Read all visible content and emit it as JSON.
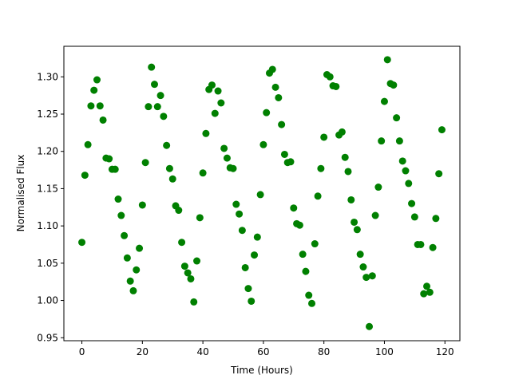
{
  "chart_data": {
    "type": "scatter",
    "xlabel": "Time (Hours)",
    "ylabel": "Normalised Flux",
    "color": "#008000",
    "x": [
      0,
      1,
      2,
      3,
      4,
      5,
      6,
      7,
      8,
      9,
      10,
      11,
      12,
      13,
      14,
      15,
      16,
      17,
      18,
      19,
      20,
      21,
      22,
      23,
      24,
      25,
      26,
      27,
      28,
      29,
      30,
      31,
      32,
      33,
      34,
      35,
      36,
      37,
      38,
      39,
      40,
      41,
      42,
      43,
      44,
      45,
      46,
      47,
      48,
      49,
      50,
      51,
      52,
      53,
      54,
      55,
      56,
      57,
      58,
      59,
      60,
      61,
      62,
      63,
      64,
      65,
      66,
      67,
      68,
      69,
      70,
      71,
      72,
      73,
      74,
      75,
      76,
      77,
      78,
      79,
      80,
      81,
      82,
      83,
      84,
      85,
      86,
      87,
      88,
      89,
      90,
      91,
      92,
      93,
      94,
      95,
      96,
      97,
      98,
      99,
      100,
      101,
      102,
      103,
      104,
      105,
      106,
      107,
      108,
      109,
      110,
      111,
      112,
      113,
      114,
      115,
      116,
      117,
      118,
      119
    ],
    "values": [
      1.078,
      1.168,
      1.209,
      1.261,
      1.282,
      1.296,
      1.261,
      1.242,
      1.191,
      1.19,
      1.176,
      1.176,
      1.136,
      1.114,
      1.087,
      1.057,
      1.026,
      1.013,
      1.041,
      1.07,
      1.128,
      1.185,
      1.26,
      1.313,
      1.29,
      1.26,
      1.275,
      1.247,
      1.208,
      1.177,
      1.163,
      1.127,
      1.121,
      1.078,
      1.046,
      1.037,
      1.029,
      0.998,
      1.053,
      1.111,
      1.171,
      1.224,
      1.283,
      1.289,
      1.251,
      1.281,
      1.265,
      1.204,
      1.191,
      1.178,
      1.177,
      1.129,
      1.116,
      1.094,
      1.044,
      1.016,
      0.999,
      1.061,
      1.085,
      1.142,
      1.209,
      1.252,
      1.305,
      1.31,
      1.286,
      1.272,
      1.236,
      1.196,
      1.185,
      1.186,
      1.124,
      1.103,
      1.101,
      1.062,
      1.039,
      1.007,
      0.996,
      1.076,
      1.14,
      1.177,
      1.219,
      1.303,
      1.3,
      1.288,
      1.287,
      1.222,
      1.226,
      1.192,
      1.173,
      1.135,
      1.105,
      1.095,
      1.062,
      1.045,
      1.031,
      0.965,
      1.033,
      1.114,
      1.152,
      1.214,
      1.267,
      1.323,
      1.291,
      1.289,
      1.245,
      1.214,
      1.187,
      1.174,
      1.157,
      1.13,
      1.112,
      1.075,
      1.075,
      1.009,
      1.019,
      1.011,
      1.071,
      1.11,
      1.17,
      1.229
    ],
    "xlim": [
      -5.95,
      124.95
    ],
    "xticks": [
      0,
      20,
      40,
      60,
      80,
      100,
      120
    ],
    "ylim": [
      0.946,
      1.341
    ],
    "yticks": [
      0.95,
      {
        "value": 1.0,
        "label": "1.00"
      },
      1.05,
      {
        "value": 1.1,
        "label": "1.10"
      },
      1.15,
      {
        "value": 1.2,
        "label": "1.20"
      },
      1.25,
      {
        "value": 1.3,
        "label": "1.30"
      }
    ]
  }
}
